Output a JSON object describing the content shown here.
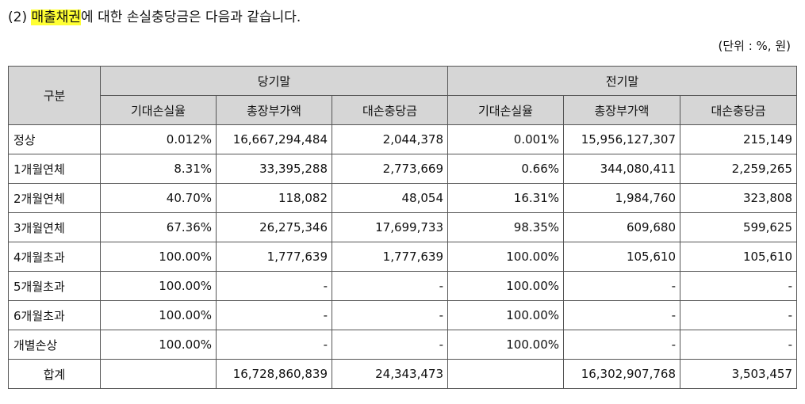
{
  "heading": {
    "prefix": "(2) ",
    "highlight": "매출채권",
    "rest": "에 대한 손실충당금은 다음과 같습니다."
  },
  "unit_note": "(단위 : %, 원)",
  "table": {
    "col_group_header": "구분",
    "period_current": "당기말",
    "period_prior": "전기말",
    "sub_headers": [
      "기대손실율",
      "총장부가액",
      "대손충당금",
      "기대손실율",
      "총장부가액",
      "대손충당금"
    ],
    "rows": [
      {
        "label": "정상",
        "cells": [
          "0.012%",
          "16,667,294,484",
          "2,044,378",
          "0.001%",
          "15,956,127,307",
          "215,149"
        ]
      },
      {
        "label": "1개월연체",
        "cells": [
          "8.31%",
          "33,395,288",
          "2,773,669",
          "0.66%",
          "344,080,411",
          "2,259,265"
        ]
      },
      {
        "label": "2개월연체",
        "cells": [
          "40.70%",
          "118,082",
          "48,054",
          "16.31%",
          "1,984,760",
          "323,808"
        ]
      },
      {
        "label": "3개월연체",
        "cells": [
          "67.36%",
          "26,275,346",
          "17,699,733",
          "98.35%",
          "609,680",
          "599,625"
        ]
      },
      {
        "label": "4개월초과",
        "cells": [
          "100.00%",
          "1,777,639",
          "1,777,639",
          "100.00%",
          "105,610",
          "105,610"
        ]
      },
      {
        "label": "5개월초과",
        "cells": [
          "100.00%",
          "-",
          "-",
          "100.00%",
          "-",
          "-"
        ]
      },
      {
        "label": "6개월초과",
        "cells": [
          "100.00%",
          "-",
          "-",
          "100.00%",
          "-",
          "-"
        ]
      },
      {
        "label": "개별손상",
        "cells": [
          "100.00%",
          "-",
          "-",
          "100.00%",
          "-",
          "-"
        ]
      },
      {
        "label": "합계",
        "cells": [
          "",
          "16,728,860,839",
          "24,343,473",
          "",
          "16,302,907,768",
          "3,503,457"
        ]
      }
    ]
  },
  "colors": {
    "header_bg": "#d6d6d6",
    "highlight": "#ffff33",
    "border": "#555555"
  }
}
